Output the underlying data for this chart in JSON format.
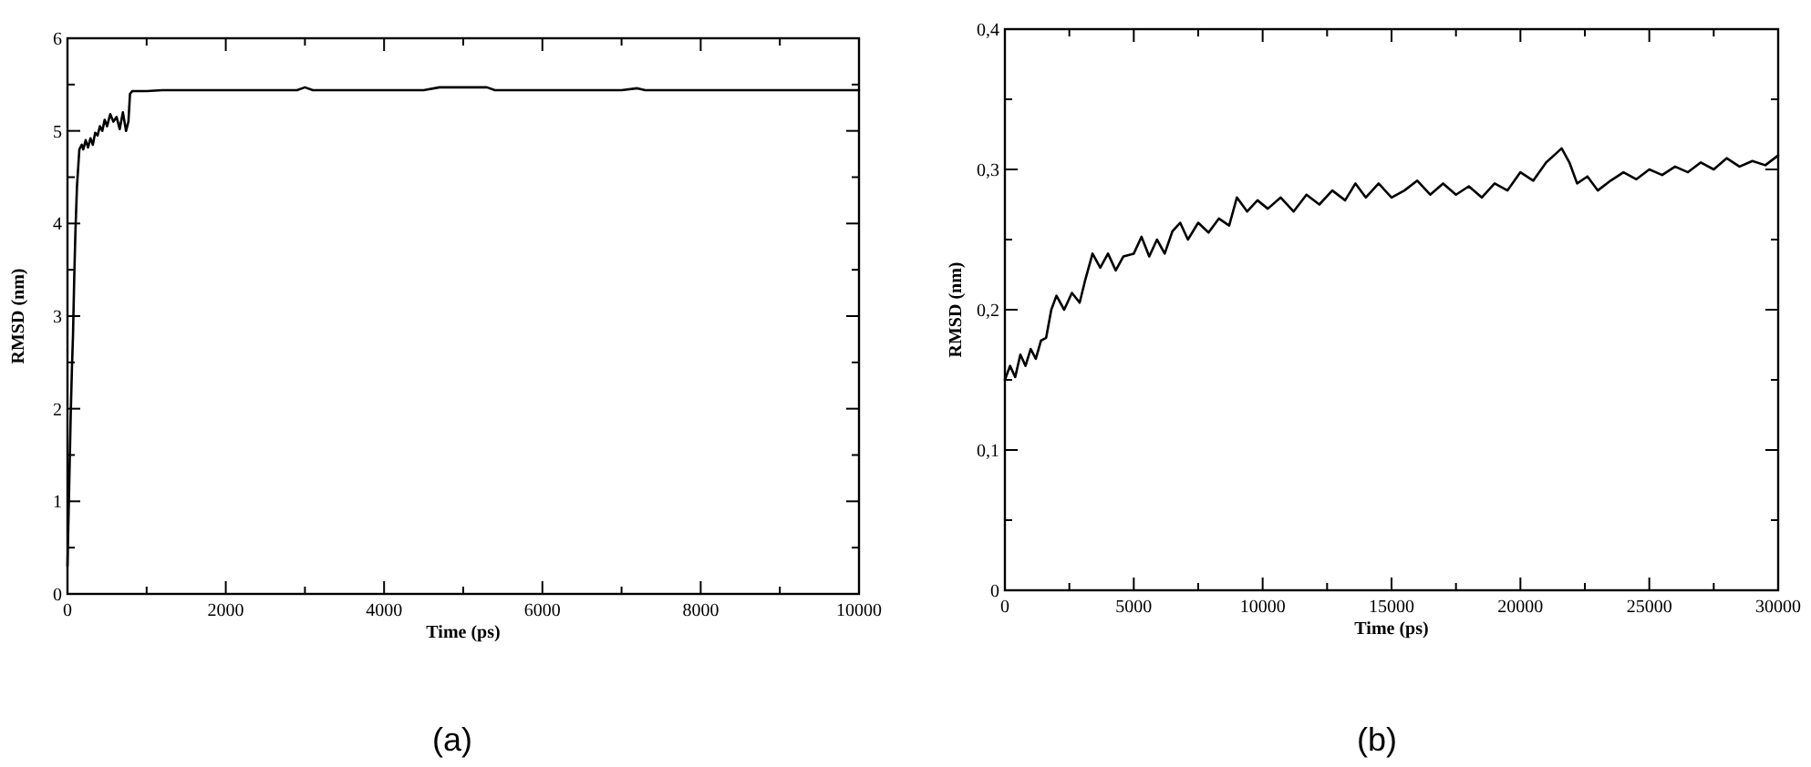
{
  "chart_data": [
    {
      "type": "line",
      "xlabel": "Time (ps)",
      "ylabel": "RMSD (nm)",
      "annotations": [
        "(a)"
      ],
      "xlim": [
        0,
        10000
      ],
      "ylim": [
        0,
        6
      ],
      "xticks": [
        0,
        {
          "value": 1000,
          "label": null
        },
        2000,
        {
          "value": 3000,
          "label": null
        },
        4000,
        {
          "value": 5000,
          "label": null
        },
        6000,
        {
          "value": 7000,
          "label": null
        },
        8000,
        {
          "value": 9000,
          "label": null
        },
        10000
      ],
      "yticks": [
        0,
        {
          "value": 0.5,
          "label": null
        },
        1,
        {
          "value": 1.5,
          "label": null
        },
        2,
        {
          "value": 2.5,
          "label": null
        },
        3,
        {
          "value": 3.5,
          "label": null
        },
        4,
        {
          "value": 4.5,
          "label": null
        },
        5,
        {
          "value": 5.5,
          "label": null
        },
        6
      ],
      "grid": false,
      "marker": "none",
      "line_style": "solid",
      "series": [
        {
          "color": "#000000",
          "x": [
            0,
            10,
            20,
            30,
            40,
            55,
            70,
            85,
            100,
            120,
            150,
            180,
            200,
            230,
            260,
            290,
            320,
            350,
            380,
            410,
            440,
            470,
            500,
            540,
            580,
            620,
            660,
            700,
            740,
            770,
            790,
            820,
            1000,
            1200,
            2000,
            2900,
            3000,
            3100,
            3500,
            4500,
            4700,
            5000,
            5300,
            5400,
            6000,
            7000,
            7200,
            7300,
            8000,
            9000,
            10000
          ],
          "values": [
            0.3,
            0.7,
            1.1,
            1.5,
            1.9,
            2.4,
            2.8,
            3.4,
            3.9,
            4.4,
            4.8,
            4.85,
            4.8,
            4.9,
            4.82,
            4.92,
            4.85,
            4.98,
            4.95,
            5.05,
            5.0,
            5.12,
            5.05,
            5.18,
            5.1,
            5.15,
            5.02,
            5.2,
            5.0,
            5.1,
            5.4,
            5.43,
            5.43,
            5.44,
            5.44,
            5.44,
            5.47,
            5.44,
            5.44,
            5.44,
            5.47,
            5.47,
            5.47,
            5.44,
            5.44,
            5.44,
            5.46,
            5.44,
            5.44,
            5.44,
            5.44
          ]
        }
      ]
    },
    {
      "type": "line",
      "xlabel": "Time (ps)",
      "ylabel": "RMSD (nm)",
      "annotations": [
        "(b)"
      ],
      "xlim": [
        0,
        30000
      ],
      "ylim": [
        0,
        0.4
      ],
      "xticks": [
        0,
        {
          "value": 2500,
          "label": null
        },
        5000,
        {
          "value": 7500,
          "label": null
        },
        10000,
        {
          "value": 12500,
          "label": null
        },
        15000,
        {
          "value": 17500,
          "label": null
        },
        20000,
        {
          "value": 22500,
          "label": null
        },
        25000,
        {
          "value": 27500,
          "label": null
        },
        30000
      ],
      "yticks": [
        0,
        {
          "value": 0.05,
          "label": null
        },
        {
          "value": 0.1,
          "label": "0,1"
        },
        {
          "value": 0.15,
          "label": null
        },
        {
          "value": 0.2,
          "label": "0,2"
        },
        {
          "value": 0.25,
          "label": null
        },
        {
          "value": 0.3,
          "label": "0,3"
        },
        {
          "value": 0.35,
          "label": null
        },
        {
          "value": 0.4,
          "label": "0,4"
        }
      ],
      "grid": false,
      "marker": "none",
      "line_style": "solid",
      "series": [
        {
          "color": "#000000",
          "x": [
            0,
            200,
            400,
            600,
            800,
            1000,
            1200,
            1400,
            1600,
            1800,
            2000,
            2300,
            2600,
            2900,
            3100,
            3400,
            3700,
            4000,
            4300,
            4600,
            5000,
            5300,
            5600,
            5900,
            6200,
            6500,
            6800,
            7100,
            7500,
            7900,
            8300,
            8700,
            9000,
            9400,
            9800,
            10200,
            10700,
            11200,
            11700,
            12200,
            12700,
            13200,
            13600,
            14000,
            14500,
            15000,
            15500,
            16000,
            16500,
            17000,
            17500,
            18000,
            18500,
            19000,
            19500,
            20000,
            20500,
            21000,
            21300,
            21600,
            21900,
            22200,
            22600,
            23000,
            23500,
            24000,
            24500,
            25000,
            25500,
            26000,
            26500,
            27000,
            27500,
            28000,
            28500,
            29000,
            29500,
            30000
          ],
          "values": [
            0.15,
            0.16,
            0.152,
            0.168,
            0.16,
            0.172,
            0.165,
            0.178,
            0.18,
            0.2,
            0.21,
            0.2,
            0.212,
            0.205,
            0.22,
            0.24,
            0.23,
            0.24,
            0.228,
            0.238,
            0.24,
            0.252,
            0.238,
            0.25,
            0.24,
            0.256,
            0.262,
            0.25,
            0.262,
            0.255,
            0.265,
            0.26,
            0.28,
            0.27,
            0.278,
            0.272,
            0.28,
            0.27,
            0.282,
            0.275,
            0.285,
            0.278,
            0.29,
            0.28,
            0.29,
            0.28,
            0.285,
            0.292,
            0.282,
            0.29,
            0.282,
            0.288,
            0.28,
            0.29,
            0.285,
            0.298,
            0.292,
            0.305,
            0.31,
            0.315,
            0.305,
            0.29,
            0.295,
            0.285,
            0.292,
            0.298,
            0.293,
            0.3,
            0.296,
            0.302,
            0.298,
            0.305,
            0.3,
            0.308,
            0.302,
            0.306,
            0.303,
            0.31
          ]
        }
      ]
    }
  ]
}
